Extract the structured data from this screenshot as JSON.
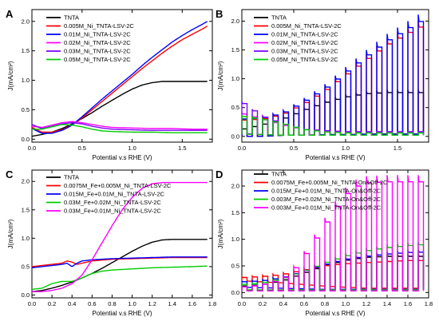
{
  "chart_data": [
    {
      "panel": "A",
      "type": "line",
      "xlabel": "Potential v.s RHE (V)",
      "ylabel": "J(mA/cm²)",
      "xlim": [
        0,
        1.8
      ],
      "ylim": [
        -0.05,
        2.2
      ],
      "xticks": [
        "0.0",
        "0.5",
        "1.0",
        "1.5"
      ],
      "yticks": [
        "0.0",
        "0.5",
        "1.0",
        "1.5",
        "2.0"
      ],
      "mode": "smooth",
      "series": [
        {
          "name": "TNTA",
          "color": "#000000",
          "x": [
            0,
            0.1,
            0.2,
            0.3,
            0.4,
            0.5,
            0.6,
            0.7,
            0.8,
            0.9,
            1.0,
            1.1,
            1.2,
            1.3,
            1.4,
            1.5,
            1.6,
            1.75
          ],
          "y": [
            0.05,
            0.08,
            0.12,
            0.18,
            0.26,
            0.35,
            0.45,
            0.56,
            0.66,
            0.76,
            0.85,
            0.92,
            0.96,
            0.98,
            0.98,
            0.98,
            0.98,
            0.98
          ]
        },
        {
          "name": "0.005M_Ni_TNTA-LSV-2C",
          "color": "#ff0000",
          "x": [
            0,
            0.1,
            0.2,
            0.3,
            0.35,
            0.4,
            0.5,
            0.6,
            0.7,
            0.8,
            0.9,
            1.0,
            1.1,
            1.2,
            1.3,
            1.4,
            1.5,
            1.6,
            1.7,
            1.75
          ],
          "y": [
            0.2,
            0.12,
            0.12,
            0.16,
            0.2,
            0.24,
            0.36,
            0.5,
            0.64,
            0.78,
            0.92,
            1.06,
            1.2,
            1.33,
            1.46,
            1.58,
            1.69,
            1.78,
            1.87,
            1.92
          ]
        },
        {
          "name": "0.01M_Ni_TNTA-LSV-2C",
          "color": "#0000ff",
          "x": [
            0,
            0.1,
            0.2,
            0.3,
            0.35,
            0.4,
            0.5,
            0.6,
            0.7,
            0.8,
            0.9,
            1.0,
            1.1,
            1.2,
            1.3,
            1.4,
            1.5,
            1.6,
            1.7,
            1.75
          ],
          "y": [
            0.18,
            0.1,
            0.1,
            0.15,
            0.19,
            0.24,
            0.38,
            0.53,
            0.68,
            0.82,
            0.96,
            1.1,
            1.25,
            1.39,
            1.52,
            1.65,
            1.76,
            1.86,
            1.95,
            2.0
          ]
        },
        {
          "name": "0.02M_Ni_TNTA-LSV-2C",
          "color": "#ff00ff",
          "x": [
            0,
            0.1,
            0.2,
            0.3,
            0.4,
            0.5,
            0.6,
            0.7,
            0.8,
            1.0,
            1.2,
            1.4,
            1.6,
            1.75
          ],
          "y": [
            0.22,
            0.2,
            0.24,
            0.28,
            0.3,
            0.28,
            0.25,
            0.22,
            0.2,
            0.19,
            0.18,
            0.18,
            0.17,
            0.17
          ]
        },
        {
          "name": "0.03M_Ni_TNTA-LSV-2C",
          "color": "#7f00ff",
          "x": [
            0,
            0.1,
            0.2,
            0.3,
            0.4,
            0.5,
            0.6,
            0.7,
            0.8,
            1.0,
            1.2,
            1.4,
            1.6,
            1.75
          ],
          "y": [
            0.25,
            0.18,
            0.22,
            0.26,
            0.28,
            0.26,
            0.22,
            0.19,
            0.17,
            0.16,
            0.15,
            0.15,
            0.15,
            0.15
          ]
        },
        {
          "name": "0.05M_Ni_TNTA-LSV-2C",
          "color": "#00cc00",
          "x": [
            0,
            0.1,
            0.2,
            0.3,
            0.4,
            0.5,
            0.6,
            0.7,
            0.8,
            1.0,
            1.2,
            1.4,
            1.6,
            1.75
          ],
          "y": [
            0.17,
            0.17,
            0.21,
            0.25,
            0.24,
            0.21,
            0.17,
            0.14,
            0.13,
            0.12,
            0.12,
            0.11,
            0.11,
            0.11
          ]
        }
      ]
    },
    {
      "panel": "B",
      "type": "line",
      "xlabel": "Potential v.s RHE (V)",
      "ylabel": "J(mA/cm²)",
      "xlim": [
        0,
        1.8
      ],
      "ylim": [
        -0.1,
        2.2
      ],
      "xticks": [
        "0.0",
        "0.5",
        "1.0",
        "1.5"
      ],
      "yticks": [
        "0.0",
        "0.5",
        "1.0",
        "1.5",
        "2.0"
      ],
      "mode": "chopped",
      "period": 0.1,
      "on_fraction": 0.5,
      "series": [
        {
          "name": "TNTA",
          "color": "#000000",
          "x": [
            0,
            0.2,
            0.4,
            0.6,
            0.8,
            1.0,
            1.2,
            1.4,
            1.6,
            1.75
          ],
          "y_on": [
            0.12,
            0.2,
            0.3,
            0.45,
            0.58,
            0.68,
            0.74,
            0.76,
            0.76,
            0.76
          ],
          "y_off": [
            0.0,
            0.0,
            0.02,
            0.02,
            0.03,
            0.03,
            0.04,
            0.04,
            0.04,
            0.04
          ]
        },
        {
          "name": "0.005M_Ni_TNTA-LSV-2C",
          "color": "#ff0000",
          "x": [
            0,
            0.2,
            0.4,
            0.6,
            0.8,
            1.0,
            1.2,
            1.4,
            1.6,
            1.75
          ],
          "y_on": [
            0.28,
            0.3,
            0.38,
            0.56,
            0.78,
            1.05,
            1.32,
            1.58,
            1.78,
            1.92
          ],
          "y_off": [
            0.0,
            0.0,
            0.02,
            0.02,
            0.03,
            0.03,
            0.04,
            0.04,
            0.04,
            0.04
          ]
        },
        {
          "name": "0.01M_Ni_TNTA-LSV-2C",
          "color": "#0000ff",
          "x": [
            0,
            0.2,
            0.4,
            0.6,
            0.8,
            1.0,
            1.2,
            1.4,
            1.6,
            1.75
          ],
          "y_on": [
            0.3,
            0.32,
            0.4,
            0.6,
            0.82,
            1.1,
            1.38,
            1.65,
            1.86,
            2.02
          ],
          "y_off": [
            0.0,
            0.0,
            0.02,
            0.02,
            0.03,
            0.03,
            0.04,
            0.04,
            0.04,
            0.04
          ]
        },
        {
          "name": "0.02M_Ni_TNTA-LSV-2C",
          "color": "#ff00ff",
          "x": [
            0,
            0.2,
            0.4,
            0.6,
            0.8,
            1.0,
            1.75
          ],
          "y_on": [
            0.4,
            0.3,
            0.2,
            0.12,
            0.1,
            0.08,
            0.08
          ],
          "y_off": [
            0.05,
            0.03,
            0.02,
            0.02,
            0.02,
            0.02,
            0.02
          ]
        },
        {
          "name": "0.03M_Ni_TNTA-LSV-2C",
          "color": "#7f00ff",
          "x": [
            0,
            0.2,
            0.4,
            0.6,
            0.8,
            1.0,
            1.75
          ],
          "y_on": [
            0.6,
            0.35,
            0.22,
            0.12,
            0.1,
            0.08,
            0.08
          ],
          "y_off": [
            0.05,
            0.03,
            0.02,
            0.02,
            0.02,
            0.02,
            0.02
          ]
        },
        {
          "name": "0.05M_Ni_TNTA-LSV-2C",
          "color": "#00cc00",
          "x": [
            0,
            0.2,
            0.4,
            0.6,
            0.8,
            1.0,
            1.75
          ],
          "y_on": [
            0.35,
            0.3,
            0.22,
            0.12,
            0.08,
            0.06,
            0.06
          ],
          "y_off": [
            0.04,
            0.03,
            0.02,
            0.02,
            0.02,
            0.02,
            0.02
          ]
        }
      ]
    },
    {
      "panel": "C",
      "type": "line",
      "xlabel": "Potential v.s RHE (V)",
      "ylabel": "J(mA/cm²)",
      "xlim": [
        0,
        1.8
      ],
      "ylim": [
        -0.05,
        2.2
      ],
      "xticks": [
        "0.0",
        "0.2",
        "0.4",
        "0.6",
        "0.8",
        "1.0",
        "1.2",
        "1.4",
        "1.6",
        "1.8"
      ],
      "yticks": [
        "0.0",
        "0.5",
        "1.0",
        "1.5",
        "2.0"
      ],
      "mode": "smooth",
      "series": [
        {
          "name": "TNTA",
          "color": "#000000",
          "x": [
            0,
            0.1,
            0.2,
            0.3,
            0.4,
            0.5,
            0.6,
            0.7,
            0.8,
            0.9,
            1.0,
            1.1,
            1.2,
            1.3,
            1.4,
            1.5,
            1.6,
            1.75
          ],
          "y": [
            0.06,
            0.08,
            0.12,
            0.17,
            0.23,
            0.3,
            0.38,
            0.47,
            0.57,
            0.67,
            0.77,
            0.86,
            0.93,
            0.97,
            0.98,
            0.98,
            0.98,
            0.98
          ]
        },
        {
          "name": "0.0075M_Fe+0.005M_Ni_TNTA-LSV-2C",
          "color": "#ff0000",
          "x": [
            0,
            0.1,
            0.2,
            0.3,
            0.35,
            0.4,
            0.45,
            0.5,
            0.6,
            0.8,
            1.0,
            1.2,
            1.4,
            1.6,
            1.75
          ],
          "y": [
            0.5,
            0.52,
            0.54,
            0.56,
            0.6,
            0.58,
            0.54,
            0.56,
            0.6,
            0.63,
            0.64,
            0.65,
            0.66,
            0.66,
            0.66
          ]
        },
        {
          "name": "0.015M_Fe+0.01M_Ni_TNTA-LSV-2C",
          "color": "#0000ff",
          "x": [
            0,
            0.1,
            0.2,
            0.3,
            0.35,
            0.4,
            0.45,
            0.5,
            0.6,
            0.8,
            1.0,
            1.2,
            1.4,
            1.6,
            1.75
          ],
          "y": [
            0.48,
            0.5,
            0.52,
            0.54,
            0.56,
            0.5,
            0.56,
            0.6,
            0.62,
            0.64,
            0.65,
            0.66,
            0.67,
            0.67,
            0.67
          ]
        },
        {
          "name": "0.03M_Fe+0.02M_Ni_TNTA-LSV-2C",
          "color": "#00cc00",
          "x": [
            0,
            0.1,
            0.2,
            0.3,
            0.4,
            0.5,
            0.6,
            0.7,
            0.8,
            1.0,
            1.2,
            1.4,
            1.6,
            1.75
          ],
          "y": [
            0.1,
            0.12,
            0.2,
            0.24,
            0.24,
            0.3,
            0.38,
            0.42,
            0.44,
            0.46,
            0.48,
            0.49,
            0.5,
            0.51
          ]
        },
        {
          "name": "0.03M_Fe+0.01M_Ni_TNTA-LSV-2C",
          "color": "#ff00ff",
          "x": [
            0,
            0.1,
            0.2,
            0.3,
            0.4,
            0.5,
            0.6,
            0.7,
            0.8,
            0.9,
            1.0,
            1.1,
            1.2,
            1.3,
            1.5,
            1.75
          ],
          "y": [
            0.06,
            0.06,
            0.08,
            0.12,
            0.2,
            0.35,
            0.62,
            0.92,
            1.22,
            1.5,
            1.72,
            1.88,
            1.96,
            1.98,
            1.98,
            1.98
          ]
        }
      ]
    },
    {
      "panel": "D",
      "type": "line",
      "xlabel": "Potential v.s RHE (V)",
      "ylabel": "J(mA/cm²)",
      "xlim": [
        0,
        1.8
      ],
      "ylim": [
        -0.1,
        2.3
      ],
      "xticks": [
        "0.0",
        "0.2",
        "0.4",
        "0.6",
        "0.8",
        "1.0",
        "1.2",
        "1.4",
        "1.6",
        "1.8"
      ],
      "yticks": [
        "0.0",
        "0.5",
        "1.0",
        "1.5",
        "2.0"
      ],
      "mode": "chopped",
      "period": 0.1,
      "on_fraction": 0.5,
      "series": [
        {
          "name": "TNTA",
          "color": "#000000",
          "x": [
            0,
            0.2,
            0.4,
            0.6,
            0.8,
            1.0,
            1.2,
            1.4,
            1.6,
            1.75
          ],
          "y_on": [
            0.12,
            0.15,
            0.22,
            0.36,
            0.5,
            0.6,
            0.66,
            0.68,
            0.68,
            0.68
          ],
          "y_off": [
            0.04,
            0.04,
            0.04,
            0.05,
            0.05,
            0.05,
            0.05,
            0.05,
            0.05,
            0.05
          ]
        },
        {
          "name": "0.0075M_Fe+0.005M_Ni_TNTA-On&Off-2C",
          "color": "#ff0000",
          "x": [
            0,
            0.2,
            0.4,
            0.6,
            0.8,
            1.0,
            1.2,
            1.4,
            1.6,
            1.75
          ],
          "y_on": [
            0.28,
            0.3,
            0.34,
            0.42,
            0.5,
            0.54,
            0.56,
            0.58,
            0.6,
            0.6
          ],
          "y_off": [
            0.22,
            0.2,
            0.18,
            0.15,
            0.12,
            0.1,
            0.08,
            0.08,
            0.08,
            0.08
          ]
        },
        {
          "name": "0.015M_Fe+0.01M_Ni_TNTA-On&Off-2C",
          "color": "#0000ff",
          "x": [
            0,
            0.2,
            0.4,
            0.6,
            0.8,
            1.0,
            1.2,
            1.4,
            1.6,
            1.75
          ],
          "y_on": [
            0.2,
            0.22,
            0.28,
            0.4,
            0.52,
            0.62,
            0.68,
            0.72,
            0.75,
            0.76
          ],
          "y_off": [
            0.1,
            0.09,
            0.08,
            0.07,
            0.06,
            0.06,
            0.06,
            0.06,
            0.06,
            0.06
          ]
        },
        {
          "name": "0.003M_Fe+0.02M_Ni_TNTA-On&Off-2C",
          "color": "#00cc00",
          "x": [
            0,
            0.2,
            0.4,
            0.6,
            0.8,
            1.0,
            1.2,
            1.4,
            1.6,
            1.75
          ],
          "y_on": [
            0.15,
            0.18,
            0.26,
            0.4,
            0.55,
            0.68,
            0.78,
            0.84,
            0.88,
            0.9
          ],
          "y_off": [
            0.05,
            0.05,
            0.05,
            0.05,
            0.05,
            0.05,
            0.05,
            0.05,
            0.05,
            0.05
          ]
        },
        {
          "name": "0.003M_Fe+0.01M_Ni_TNTA-On&Off-2C",
          "color": "#ff00ff",
          "x": [
            0,
            0.2,
            0.4,
            0.5,
            0.6,
            0.7,
            0.8,
            0.9,
            1.0,
            1.1,
            1.2,
            1.4,
            1.6,
            1.75
          ],
          "y_on": [
            0.1,
            0.14,
            0.25,
            0.4,
            0.66,
            0.95,
            1.25,
            1.55,
            1.82,
            1.98,
            2.06,
            2.08,
            2.08,
            2.08
          ],
          "y_off": [
            0.03,
            0.03,
            0.03,
            0.03,
            0.03,
            0.03,
            0.03,
            0.03,
            0.03,
            0.03,
            0.03,
            0.03,
            0.03,
            0.03
          ]
        }
      ]
    }
  ]
}
